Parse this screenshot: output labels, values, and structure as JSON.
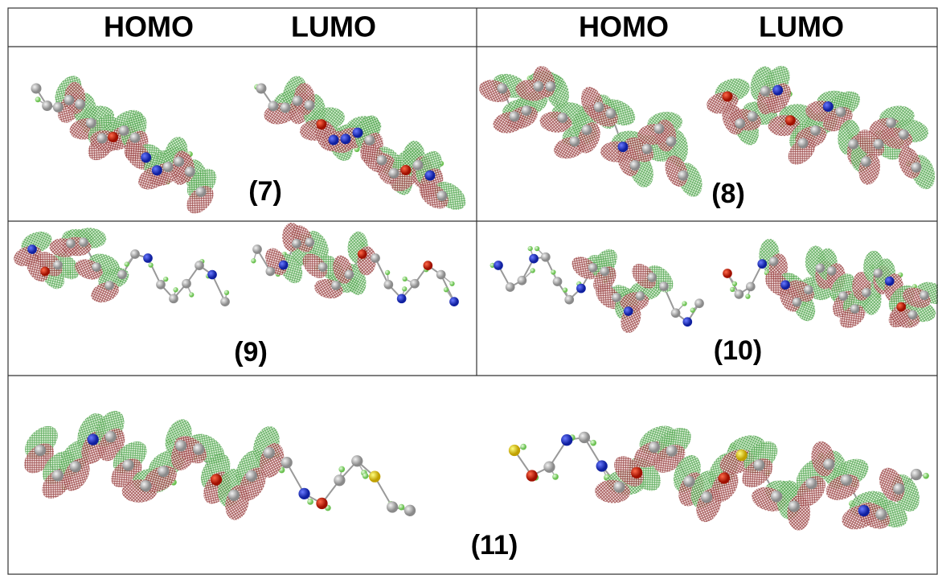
{
  "header": {
    "columns": [
      "HOMO",
      "LUMO",
      "HOMO",
      "LUMO"
    ]
  },
  "panels": [
    "(7)",
    "(8)",
    "(9)",
    "(10)",
    "(11)"
  ]
}
